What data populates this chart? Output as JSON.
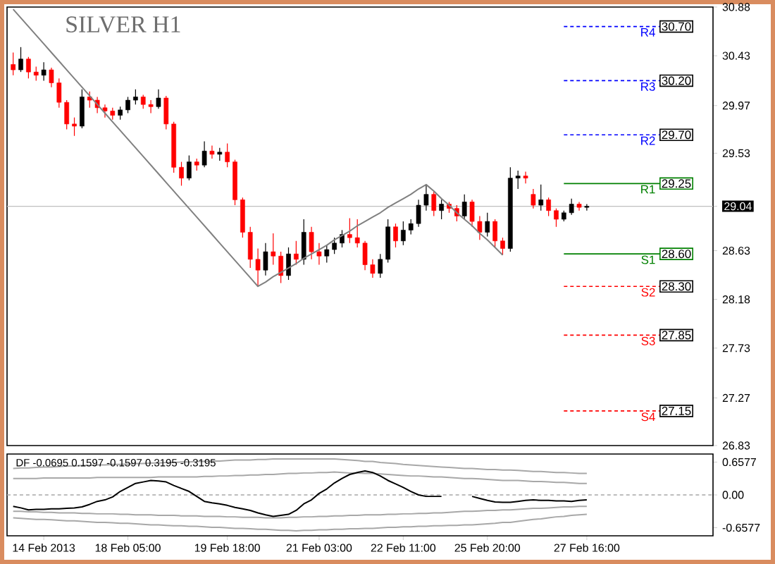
{
  "chart_data": [
    {
      "type": "candlestick",
      "title": "SILVER H1",
      "ylim": [
        26.83,
        30.88
      ],
      "yticks": [
        30.88,
        30.43,
        29.97,
        29.53,
        {
          "value": 29.04,
          "label": "29.04"
        },
        28.63,
        28.18,
        27.73,
        27.27,
        26.83
      ],
      "tick_labels": "y",
      "categories": [
        null,
        null,
        null,
        null,
        null,
        null,
        null,
        null,
        null,
        null,
        null,
        null,
        null,
        null,
        null,
        null,
        null,
        null,
        null,
        null,
        null,
        null,
        null,
        null,
        null,
        null,
        null,
        null,
        null,
        null,
        null,
        null,
        null,
        null,
        null,
        null,
        null,
        null,
        null,
        null,
        null,
        null,
        null,
        null,
        null,
        null,
        null,
        null,
        null,
        null,
        null,
        null,
        null,
        null,
        null,
        null,
        null,
        null,
        null,
        null,
        null,
        null,
        null,
        null,
        null,
        null,
        null,
        null,
        null,
        null,
        null,
        null,
        null,
        null,
        null,
        null
      ],
      "ohlc": [
        [
          30.35,
          30.46,
          30.25,
          30.3
        ],
        [
          30.3,
          30.51,
          30.28,
          30.4
        ],
        [
          30.4,
          30.42,
          30.22,
          30.28
        ],
        [
          30.28,
          30.33,
          30.2,
          30.25
        ],
        [
          30.25,
          30.37,
          30.2,
          30.3
        ],
        [
          30.3,
          30.32,
          30.14,
          30.18
        ],
        [
          30.18,
          30.22,
          29.95,
          30.0
        ],
        [
          30.0,
          30.02,
          29.75,
          29.8
        ],
        [
          29.8,
          29.86,
          29.69,
          29.78
        ],
        [
          29.78,
          30.12,
          29.76,
          30.05
        ],
        [
          30.05,
          30.1,
          29.95,
          30.02
        ],
        [
          30.02,
          30.05,
          29.9,
          29.95
        ],
        [
          29.95,
          29.98,
          29.86,
          29.92
        ],
        [
          29.92,
          29.95,
          29.84,
          29.88
        ],
        [
          29.88,
          29.96,
          29.84,
          29.93
        ],
        [
          29.93,
          30.05,
          29.9,
          30.02
        ],
        [
          30.02,
          30.12,
          29.98,
          30.05
        ],
        [
          30.05,
          30.07,
          29.94,
          29.98
        ],
        [
          29.98,
          30.02,
          29.9,
          29.96
        ],
        [
          29.96,
          30.12,
          29.94,
          30.04
        ],
        [
          30.04,
          30.06,
          29.75,
          29.8
        ],
        [
          29.8,
          29.82,
          29.35,
          29.4
        ],
        [
          29.4,
          29.45,
          29.23,
          29.3
        ],
        [
          29.3,
          29.51,
          29.28,
          29.45
        ],
        [
          29.45,
          29.48,
          29.37,
          29.42
        ],
        [
          29.42,
          29.64,
          29.4,
          29.55
        ],
        [
          29.55,
          29.6,
          29.48,
          29.52
        ],
        [
          29.52,
          29.58,
          29.46,
          29.54
        ],
        [
          29.54,
          29.62,
          29.4,
          29.45
        ],
        [
          29.45,
          29.47,
          29.05,
          29.1
        ],
        [
          29.1,
          29.12,
          28.75,
          28.8
        ],
        [
          28.8,
          28.85,
          28.47,
          28.55
        ],
        [
          28.55,
          28.65,
          28.3,
          28.45
        ],
        [
          28.45,
          28.7,
          28.4,
          28.62
        ],
        [
          28.62,
          28.79,
          28.5,
          28.58
        ],
        [
          28.58,
          28.62,
          28.33,
          28.4
        ],
        [
          28.4,
          28.66,
          28.36,
          28.6
        ],
        [
          28.6,
          28.72,
          28.5,
          28.55
        ],
        [
          28.55,
          28.92,
          28.5,
          28.8
        ],
        [
          28.8,
          28.85,
          28.55,
          28.62
        ],
        [
          28.62,
          28.7,
          28.5,
          28.58
        ],
        [
          28.58,
          28.68,
          28.52,
          28.64
        ],
        [
          28.64,
          28.75,
          28.6,
          28.7
        ],
        [
          28.7,
          28.82,
          28.66,
          28.78
        ],
        [
          28.78,
          28.93,
          28.7,
          28.75
        ],
        [
          28.75,
          28.92,
          28.66,
          28.7
        ],
        [
          28.7,
          28.72,
          28.45,
          28.5
        ],
        [
          28.5,
          28.55,
          28.38,
          28.42
        ],
        [
          28.42,
          28.6,
          28.38,
          28.55
        ],
        [
          28.55,
          28.92,
          28.52,
          28.85
        ],
        [
          28.85,
          28.88,
          28.66,
          28.72
        ],
        [
          28.72,
          28.9,
          28.68,
          28.82
        ],
        [
          28.82,
          28.92,
          28.78,
          28.88
        ],
        [
          28.88,
          29.1,
          28.85,
          29.05
        ],
        [
          29.05,
          29.24,
          29.0,
          29.15
        ],
        [
          29.15,
          29.18,
          28.95,
          29.0
        ],
        [
          29.0,
          29.1,
          28.92,
          29.06
        ],
        [
          29.06,
          29.08,
          28.98,
          29.02
        ],
        [
          29.02,
          29.05,
          28.9,
          28.95
        ],
        [
          28.95,
          29.15,
          28.92,
          29.08
        ],
        [
          29.08,
          29.1,
          28.85,
          28.9
        ],
        [
          28.9,
          28.95,
          28.73,
          28.8
        ],
        [
          28.8,
          28.98,
          28.76,
          28.9
        ],
        [
          28.9,
          28.92,
          28.66,
          28.72
        ],
        [
          28.72,
          28.75,
          28.59,
          28.65
        ],
        [
          28.65,
          29.4,
          28.62,
          29.3
        ],
        [
          29.3,
          29.37,
          29.2,
          29.32
        ],
        [
          29.32,
          29.36,
          29.25,
          29.3
        ],
        [
          29.15,
          29.2,
          29.02,
          29.05
        ],
        [
          29.05,
          29.24,
          29.0,
          29.1
        ],
        [
          29.1,
          29.12,
          28.95,
          29.0
        ],
        [
          29.0,
          29.02,
          28.85,
          28.92
        ],
        [
          28.92,
          29.0,
          28.9,
          28.98
        ],
        [
          28.98,
          29.11,
          28.96,
          29.06
        ],
        [
          29.06,
          29.08,
          29.0,
          29.03
        ],
        [
          29.03,
          29.06,
          29.0,
          29.04
        ]
      ],
      "series": [
        {
          "type": "line",
          "color": "#808080",
          "values": [
            30.86,
            30.78,
            30.7,
            30.62,
            30.54,
            30.46,
            30.38,
            30.3,
            30.22,
            30.14,
            30.06,
            29.98,
            29.9,
            29.82,
            29.74,
            29.66,
            29.58,
            29.5,
            29.42,
            29.34,
            29.26,
            29.18,
            29.1,
            29.02,
            28.94,
            28.86,
            28.78,
            28.7,
            28.62,
            28.54,
            28.46,
            28.38,
            28.3,
            28.34,
            28.39,
            28.43,
            28.47,
            28.51,
            28.56,
            28.6,
            28.64,
            28.68,
            28.73,
            28.77,
            28.81,
            28.86,
            28.9,
            28.94,
            28.98,
            29.03,
            29.07,
            29.11,
            29.15,
            29.2,
            29.24,
            29.18,
            29.11,
            29.05,
            28.98,
            28.92,
            28.86,
            28.79,
            28.73,
            28.66,
            28.59,
            null,
            null,
            null,
            null,
            null,
            null,
            null,
            null,
            null,
            null,
            null
          ]
        }
      ],
      "ref_lines": [
        {
          "axis": "y",
          "value": 29.04,
          "color": "#c0c0c0",
          "line_style": "solid"
        },
        {
          "axis": "y",
          "value": 30.7,
          "label": "R4",
          "color": "#0000ff",
          "line_style": "dashed"
        },
        {
          "axis": "y",
          "value": 30.2,
          "label": "R3",
          "color": "#0000ff",
          "line_style": "dashed"
        },
        {
          "axis": "y",
          "value": 29.7,
          "label": "R2",
          "color": "#0000ff",
          "line_style": "dashed"
        },
        {
          "axis": "y",
          "value": 29.25,
          "label": "R1",
          "color": "#008000",
          "line_style": "solid"
        },
        {
          "axis": "y",
          "value": 28.6,
          "label": "S1",
          "color": "#008000",
          "line_style": "solid"
        },
        {
          "axis": "y",
          "value": 28.3,
          "label": "S2",
          "color": "#ff0000",
          "line_style": "dashed"
        },
        {
          "axis": "y",
          "value": 27.85,
          "label": "S3",
          "color": "#ff0000",
          "line_style": "dashed"
        },
        {
          "axis": "y",
          "value": 27.15,
          "label": "S4",
          "color": "#ff0000",
          "line_style": "dashed"
        }
      ],
      "annotations": [
        "30.70",
        "30.20",
        "29.70",
        "29.25",
        "28.60",
        "28.30",
        "27.85",
        "27.15"
      ]
    },
    {
      "type": "line",
      "ylim": [
        -0.82,
        0.82
      ],
      "categories": [
        null,
        null,
        null,
        null,
        "14 Feb 2013",
        null,
        null,
        null,
        null,
        null,
        null,
        null,
        null,
        null,
        null,
        "18 Feb 05:00",
        null,
        null,
        null,
        null,
        null,
        null,
        null,
        null,
        null,
        null,
        null,
        null,
        "19 Feb 18:00",
        null,
        null,
        null,
        null,
        null,
        null,
        null,
        null,
        null,
        null,
        null,
        "21 Feb 03:00",
        null,
        null,
        null,
        null,
        null,
        null,
        null,
        null,
        null,
        null,
        "22 Feb 11:00",
        null,
        null,
        null,
        null,
        null,
        null,
        null,
        null,
        null,
        null,
        "25 Feb 20:00",
        null,
        null,
        null,
        null,
        null,
        null,
        null,
        null,
        null,
        null,
        null,
        null,
        "27 Feb 16:00"
      ],
      "yticks": [
        {
          "value": 0.6577,
          "label": "0.6577"
        },
        {
          "value": 0,
          "label": "0.00"
        },
        {
          "value": -0.6577,
          "label": "-0.6577"
        }
      ],
      "annotations": [
        "DF -0.0695 0.1597 -0.1597 0.3195 -0.3195"
      ],
      "series": [
        {
          "color": "#a8a8a8",
          "values": [
            0.53,
            0.54,
            0.54,
            0.55,
            0.56,
            0.56,
            0.57,
            0.58,
            0.58,
            0.59,
            0.59,
            0.6,
            0.6,
            0.61,
            0.61,
            0.62,
            0.63,
            0.63,
            0.64,
            0.64,
            0.65,
            0.65,
            0.66,
            0.66,
            0.67,
            0.67,
            0.68,
            0.68,
            0.69,
            0.7,
            0.7,
            0.7,
            0.71,
            0.71,
            0.72,
            0.72,
            0.72,
            0.72,
            0.72,
            0.72,
            0.72,
            0.72,
            0.72,
            0.71,
            0.7,
            0.69,
            0.67,
            0.67,
            0.65,
            0.64,
            0.63,
            0.61,
            0.6,
            0.59,
            0.58,
            0.57,
            0.56,
            0.55,
            0.54,
            0.53,
            0.53,
            0.52,
            0.51,
            0.51,
            0.5,
            0.5,
            0.49,
            0.48,
            0.47,
            0.47,
            0.46,
            0.45,
            0.45,
            0.44,
            0.43,
            0.43
          ]
        },
        {
          "color": "#a8a8a8",
          "values": [
            0.33,
            0.33,
            0.33,
            0.33,
            0.34,
            0.34,
            0.34,
            0.34,
            0.34,
            0.34,
            0.34,
            0.35,
            0.35,
            0.35,
            0.35,
            0.35,
            0.35,
            0.35,
            0.35,
            0.36,
            0.36,
            0.36,
            0.36,
            0.36,
            0.36,
            0.37,
            0.37,
            0.38,
            0.38,
            0.39,
            0.39,
            0.4,
            0.4,
            0.41,
            0.41,
            0.42,
            0.43,
            0.43,
            0.44,
            0.44,
            0.45,
            0.45,
            0.46,
            0.45,
            0.44,
            0.44,
            0.43,
            0.43,
            0.42,
            0.41,
            0.4,
            0.39,
            0.38,
            0.38,
            0.37,
            0.36,
            0.36,
            0.35,
            0.34,
            0.33,
            0.33,
            0.32,
            0.31,
            0.3,
            0.29,
            0.29,
            0.29,
            0.28,
            0.27,
            0.27,
            0.26,
            0.25,
            0.25,
            0.24,
            0.23,
            0.23
          ]
        },
        {
          "color": "#a8a8a8",
          "values": [
            -0.33,
            -0.33,
            -0.34,
            -0.34,
            -0.35,
            -0.35,
            -0.36,
            -0.36,
            -0.36,
            -0.37,
            -0.37,
            -0.38,
            -0.38,
            -0.38,
            -0.39,
            -0.39,
            -0.4,
            -0.4,
            -0.4,
            -0.41,
            -0.41,
            -0.41,
            -0.42,
            -0.42,
            -0.42,
            -0.43,
            -0.43,
            -0.43,
            -0.44,
            -0.44,
            -0.45,
            -0.45,
            -0.45,
            -0.46,
            -0.46,
            -0.46,
            -0.45,
            -0.45,
            -0.44,
            -0.44,
            -0.43,
            -0.43,
            -0.42,
            -0.42,
            -0.41,
            -0.41,
            -0.4,
            -0.4,
            -0.4,
            -0.39,
            -0.39,
            -0.38,
            -0.38,
            -0.37,
            -0.37,
            -0.36,
            -0.36,
            -0.35,
            -0.34,
            -0.33,
            -0.33,
            -0.32,
            -0.31,
            -0.31,
            -0.3,
            -0.3,
            -0.29,
            -0.28,
            -0.27,
            -0.27,
            -0.26,
            -0.25,
            -0.24,
            -0.24,
            -0.23,
            -0.23
          ]
        },
        {
          "color": "#a8a8a8",
          "values": [
            -0.46,
            -0.47,
            -0.48,
            -0.49,
            -0.49,
            -0.5,
            -0.51,
            -0.52,
            -0.52,
            -0.53,
            -0.54,
            -0.55,
            -0.55,
            -0.56,
            -0.57,
            -0.57,
            -0.58,
            -0.59,
            -0.6,
            -0.6,
            -0.61,
            -0.62,
            -0.62,
            -0.63,
            -0.63,
            -0.64,
            -0.65,
            -0.65,
            -0.66,
            -0.67,
            -0.67,
            -0.68,
            -0.69,
            -0.69,
            -0.7,
            -0.71,
            -0.71,
            -0.72,
            -0.71,
            -0.71,
            -0.7,
            -0.7,
            -0.69,
            -0.69,
            -0.68,
            -0.68,
            -0.67,
            -0.67,
            -0.66,
            -0.65,
            -0.65,
            -0.64,
            -0.64,
            -0.63,
            -0.63,
            -0.62,
            -0.62,
            -0.61,
            -0.61,
            -0.6,
            -0.6,
            -0.59,
            -0.58,
            -0.57,
            -0.55,
            -0.55,
            -0.53,
            -0.51,
            -0.49,
            -0.48,
            -0.46,
            -0.44,
            -0.43,
            -0.41,
            -0.4,
            -0.39
          ]
        },
        {
          "color": "#000000",
          "values": [
            -0.23,
            -0.26,
            -0.3,
            -0.29,
            -0.29,
            -0.28,
            -0.28,
            -0.27,
            -0.26,
            -0.24,
            -0.19,
            -0.13,
            -0.1,
            -0.04,
            0.07,
            0.15,
            0.23,
            0.26,
            0.29,
            0.28,
            0.26,
            0.19,
            0.13,
            0.07,
            -0.03,
            -0.13,
            -0.16,
            -0.18,
            -0.21,
            -0.25,
            -0.28,
            -0.31,
            -0.36,
            -0.4,
            -0.43,
            -0.41,
            -0.39,
            -0.31,
            -0.18,
            -0.1,
            0.03,
            0.12,
            0.24,
            0.33,
            0.41,
            0.45,
            0.48,
            0.45,
            0.38,
            0.29,
            0.22,
            0.15,
            0.07,
            0.0,
            -0.03,
            -0.03,
            -0.03,
            null,
            null,
            null,
            -0.03,
            -0.07,
            -0.11,
            -0.14,
            -0.15,
            -0.15,
            -0.13,
            -0.11,
            -0.1,
            -0.11,
            -0.11,
            -0.12,
            -0.12,
            -0.13,
            -0.11,
            -0.1
          ]
        }
      ],
      "ref_lines": [
        {
          "axis": "y",
          "value": 0,
          "color": "#a8a8a8",
          "line_style": "dashed"
        }
      ]
    }
  ]
}
